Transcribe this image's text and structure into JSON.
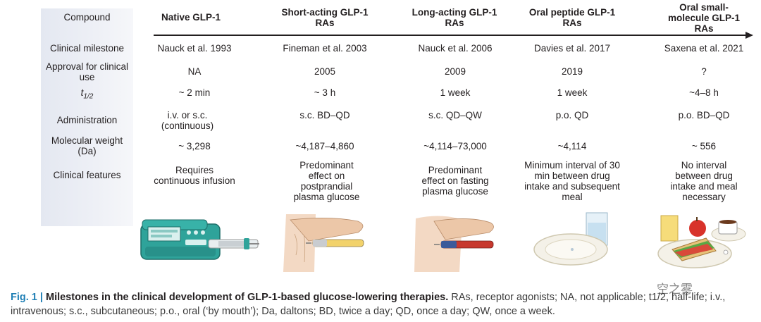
{
  "row_labels": {
    "compound": "Compound",
    "milestone": "Clinical milestone",
    "approval": "Approval for clinical use",
    "half_life_base": "t",
    "half_life_sub": "1/2",
    "administration": "Administration",
    "mw": "Molecular weight (Da)",
    "features": "Clinical features"
  },
  "columns": [
    {
      "header": "Native GLP-1",
      "milestone": "Nauck et al. 1993",
      "approval": "NA",
      "half_life": "~ 2 min",
      "administration": "i.v. or s.c. (continuous)",
      "mw": "~ 3,298",
      "features": "Requires continuous infusion"
    },
    {
      "header": "Short-acting GLP-1 RAs",
      "milestone": "Fineman et al. 2003",
      "approval": "2005",
      "half_life": "~ 3 h",
      "administration": "s.c. BD–QD",
      "mw": "~4,187–4,860",
      "features": "Predominant effect on postprandial plasma glucose"
    },
    {
      "header": "Long-acting GLP-1 RAs",
      "milestone": "Nauck et al. 2006",
      "approval": "2009",
      "half_life": "1 week",
      "administration": "s.c. QD–QW",
      "mw": "~4,114–73,000",
      "features": "Predominant effect on fasting plasma glucose"
    },
    {
      "header": "Oral peptide GLP-1 RAs",
      "milestone": "Davies et al. 2017",
      "approval": "2019",
      "half_life": "1 week",
      "administration": "p.o. QD",
      "mw": "~4,114",
      "features": "Minimum interval of 30 min between drug intake and subsequent meal"
    },
    {
      "header": "Oral small-molecule GLP-1 RAs",
      "milestone": "Saxena et al. 2021",
      "approval": "?",
      "half_life": "~4–8 h",
      "administration": "p.o. BD–QD",
      "mw": "~ 556",
      "features": "No interval between drug intake and meal necessary"
    }
  ],
  "illustrations": [
    "infusion-pump-icon",
    "pen-injector-short-icon",
    "pen-injector-long-icon",
    "plate-and-water-icon",
    "meal-and-tablet-icon"
  ],
  "caption": {
    "fig_num": "Fig. 1 |",
    "title": "Milestones in the clinical development of GLP-1-based glucose-lowering therapies.",
    "text": " RAs, receptor agonists; NA, not applicable; t1/2, half-life; i.v., intravenous; s.c., subcutaneous; p.o., oral (‘by mouth’); Da, daltons; BD, twice a day; QD, once a day; QW, once a week."
  },
  "watermark": "空之雾"
}
